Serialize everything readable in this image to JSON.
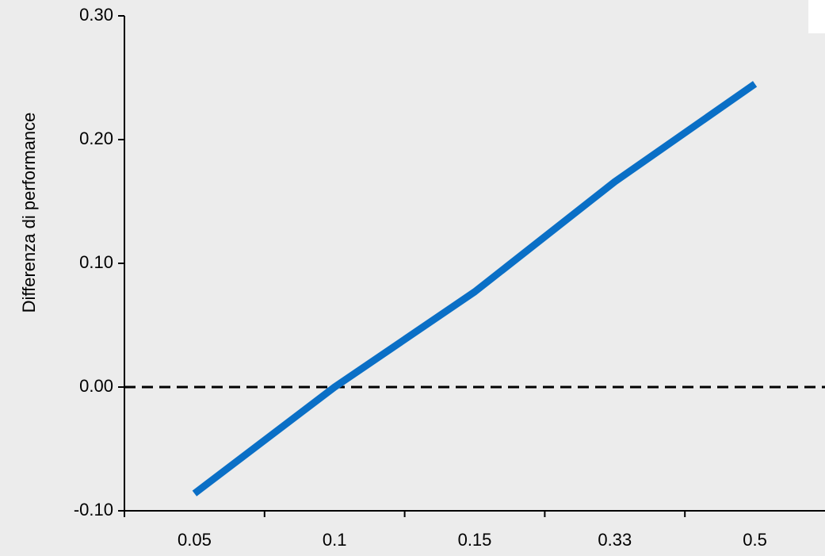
{
  "chart_data": {
    "type": "line",
    "y_label": "Differenza di performance",
    "categories": [
      "0.05",
      "0.1",
      "0.15",
      "0.33",
      "0.5"
    ],
    "series": [
      {
        "name": "Differenza di performance",
        "color": "#0a6fc6",
        "values": [
          -0.086,
          0.0,
          0.077,
          0.166,
          0.245
        ]
      }
    ],
    "ylim": [
      -0.1,
      0.3
    ],
    "yticks": [
      {
        "value": -0.1,
        "label": "-0.10"
      },
      {
        "value": 0.0,
        "label": "0.00"
      },
      {
        "value": 0.1,
        "label": "0.10"
      },
      {
        "value": 0.2,
        "label": "0.20"
      },
      {
        "value": 0.3,
        "label": "0.30"
      }
    ],
    "reference_line": 0,
    "grid": false
  }
}
